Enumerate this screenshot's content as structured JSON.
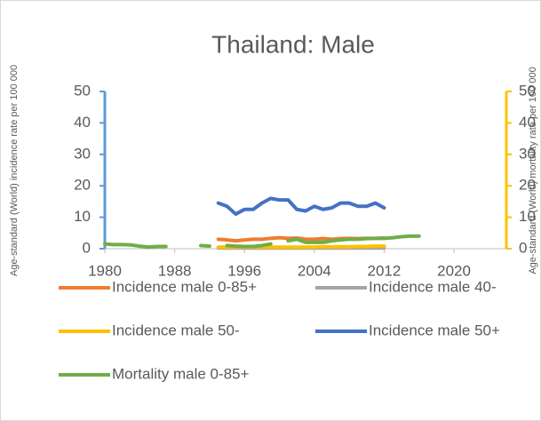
{
  "chart_data": {
    "type": "line",
    "title": "Thailand: Male",
    "y_label": "Age-standard (World) incidence rate per 100 000",
    "y2_label": "Age-standard (World) mortality rate per 100 000",
    "x": [
      1980,
      1981,
      1982,
      1983,
      1984,
      1985,
      1986,
      1987,
      1988,
      1989,
      1990,
      1991,
      1992,
      1993,
      1994,
      1995,
      1996,
      1997,
      1998,
      1999,
      2000,
      2001,
      2002,
      2003,
      2004,
      2005,
      2006,
      2007,
      2008,
      2009,
      2010,
      2011,
      2012,
      2013,
      2014,
      2015,
      2016
    ],
    "xlim": [
      1980,
      2026
    ],
    "xticks": [
      1980,
      1988,
      1996,
      2004,
      2012,
      2020
    ],
    "ylim": [
      0,
      50
    ],
    "yticks": [
      0,
      10,
      20,
      30,
      40,
      50
    ],
    "y2lim": [
      0,
      50
    ],
    "y2ticks": [
      0,
      10,
      20,
      30,
      40,
      50
    ],
    "series": [
      {
        "name": "Incidence male 0-85+",
        "color": "#ed7d31",
        "values": [
          null,
          null,
          null,
          null,
          null,
          null,
          null,
          null,
          null,
          null,
          null,
          null,
          null,
          3,
          2.8,
          2.5,
          2.8,
          3,
          3,
          3.3,
          3.5,
          3.3,
          3.4,
          3,
          3,
          3.2,
          3,
          3.2,
          3.3,
          3.2,
          3.3,
          3.3,
          3.4,
          null,
          null,
          null,
          null
        ]
      },
      {
        "name": "Incidence male 40-",
        "color": "#a5a5a5",
        "values": [
          null,
          null,
          null,
          null,
          null,
          null,
          null,
          null,
          null,
          null,
          null,
          null,
          null,
          0.2,
          0.2,
          0.2,
          0.2,
          0.2,
          0.2,
          0.2,
          0.2,
          0.2,
          0.2,
          0.2,
          0.2,
          0.2,
          0.2,
          0.2,
          0.2,
          0.2,
          0.2,
          0.2,
          0.2,
          null,
          null,
          null,
          null
        ]
      },
      {
        "name": "Incidence male 50-",
        "color": "#ffc000",
        "values": [
          null,
          null,
          null,
          null,
          null,
          null,
          null,
          null,
          null,
          null,
          null,
          null,
          null,
          0.5,
          0.5,
          0.5,
          0.5,
          0.5,
          0.5,
          0.5,
          0.5,
          0.5,
          0.5,
          0.5,
          0.5,
          0.6,
          0.6,
          0.6,
          0.6,
          0.7,
          0.7,
          0.8,
          0.8,
          null,
          null,
          null,
          null
        ]
      },
      {
        "name": "Incidence male 50+",
        "color": "#4472c4",
        "values": [
          null,
          null,
          null,
          null,
          null,
          null,
          null,
          null,
          null,
          null,
          null,
          null,
          null,
          14.5,
          13.5,
          11,
          12.5,
          12.5,
          14.5,
          16,
          15.5,
          15.5,
          12.5,
          12,
          13.5,
          12.5,
          13,
          14.5,
          14.5,
          13.5,
          13.5,
          14.5,
          13,
          null,
          null,
          null,
          null
        ]
      },
      {
        "name": "Mortality male 0-85+",
        "color": "#70ad47",
        "axis": "y2",
        "values": [
          1.5,
          1.3,
          1.3,
          1.2,
          0.8,
          0.5,
          0.7,
          0.7,
          null,
          null,
          null,
          1.0,
          0.8,
          null,
          1.0,
          0.8,
          0.7,
          0.7,
          1.0,
          1.5,
          null,
          2.5,
          3.0,
          2.0,
          2.0,
          2.0,
          2.5,
          2.8,
          3.0,
          3.0,
          3.2,
          3.3,
          3.3,
          3.5,
          3.8,
          4.0,
          4.0
        ]
      }
    ]
  }
}
